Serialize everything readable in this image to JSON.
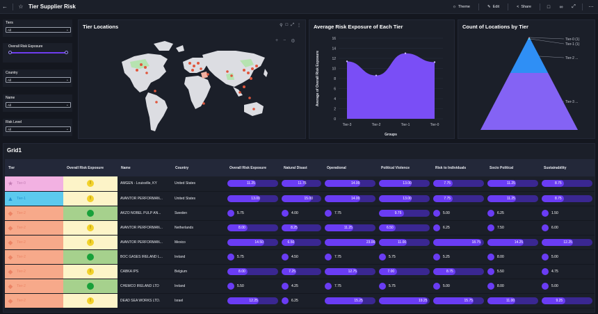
{
  "header": {
    "title": "Tier Supplier Risk",
    "buttons": {
      "theme": "Theme",
      "edit": "Edit",
      "share": "Share"
    }
  },
  "filters": [
    {
      "label": "Tiers",
      "value": "All",
      "kind": "select"
    },
    {
      "label": "Overall Risk Exposure",
      "kind": "range"
    },
    {
      "label": "Country",
      "value": "All",
      "kind": "select"
    },
    {
      "label": "Name",
      "value": "All",
      "kind": "select"
    },
    {
      "label": "Risk Level",
      "value": "All",
      "kind": "select"
    }
  ],
  "map_panel": {
    "title": "Tier Locations"
  },
  "area_chart": {
    "title": "Average Risk Exposure of Each Tier",
    "chart_data": {
      "type": "area",
      "categories": [
        "Tier-3",
        "Tier-2",
        "Tier-1",
        "Tier-0"
      ],
      "values": [
        11.4,
        8.6,
        13.0,
        11.25
      ],
      "xlabel": "Groups",
      "ylabel": "Average of Overall Risk Exposure",
      "ylim": [
        0,
        16
      ],
      "yticks": [
        0,
        2,
        4,
        6,
        8,
        10,
        12,
        14,
        16
      ],
      "grid": true,
      "color": "#7a4ef6"
    }
  },
  "pyramid_chart": {
    "title": "Count of Locations by Tier",
    "chart_data": {
      "type": "pyramid",
      "categories": [
        "Tier-0",
        "Tier-1",
        "Tier-2",
        "Tier-3"
      ],
      "values": [
        1,
        1,
        null,
        null
      ],
      "labels": [
        "Tier-0 (1)",
        "Tier-1 (1)",
        "Tier-2 ...",
        "Tier-3 ..."
      ],
      "colors": [
        "#e7a3d8",
        "#54c9f0",
        "#2f8ff5",
        "#8463f4"
      ]
    }
  },
  "grid": {
    "title": "Grid1",
    "columns": [
      "Tier",
      "Overall Risk Exposure",
      "Name",
      "Country",
      "Overall Risk Exposure",
      "Natural Disast",
      "Operational",
      "Political Violence",
      "Risk to Individuals",
      "Socio Political",
      "Sustainability"
    ],
    "rows": [
      {
        "tier": "Tier-0",
        "shape": "star",
        "tierColor": "#f2b1e2",
        "shapeColor": "#c27bb3",
        "status": "warn",
        "statusBg": "#fdf4c8",
        "name": "AMGEN - Louisville, KY",
        "country": "United States",
        "vals": [
          "11.25",
          "11.75",
          "14.00",
          "13.00",
          "7.75",
          "11.25",
          "8.75"
        ],
        "fills": [
          0.56,
          0.59,
          0.7,
          0.65,
          0.39,
          0.56,
          0.44
        ]
      },
      {
        "tier": "Tier-1",
        "shape": "triangle",
        "tierColor": "#5cc9ee",
        "shapeColor": "#1f8fd1",
        "status": "warn",
        "statusBg": "#fdf4c8",
        "name": "AVANTOR PERFORMAN...",
        "country": "United States",
        "vals": [
          "13.00",
          "15.00",
          "14.00",
          "13.00",
          "7.75",
          "11.25",
          "8.75"
        ],
        "fills": [
          0.65,
          0.75,
          0.7,
          0.65,
          0.39,
          0.56,
          0.44
        ]
      },
      {
        "tier": "Tier-2",
        "shape": "diamond",
        "tierColor": "#f7a98a",
        "shapeColor": "#ec8465",
        "status": "ok",
        "statusBg": "#a6d18d",
        "name": "AKZO NOBEL PULP AN...",
        "country": "Sweden",
        "vals": [
          "5.75",
          "4.00",
          "7.75",
          "9.75",
          "5.00",
          "6.25",
          "1.50"
        ],
        "fills": [
          0.0,
          0.0,
          0.0,
          0.49,
          0.0,
          0.0,
          0.0
        ]
      },
      {
        "tier": "Tier-2",
        "shape": "diamond",
        "tierColor": "#f7a98a",
        "shapeColor": "#ec8465",
        "status": "warn",
        "statusBg": "#fdf4c8",
        "name": "AVANTOR PERFORMAN...",
        "country": "Netherlands",
        "vals": [
          "8.00",
          "8.25",
          "11.25",
          "6.50",
          "6.25",
          "7.50",
          "6.00"
        ],
        "fills": [
          0.4,
          0.41,
          0.56,
          0.33,
          0.0,
          0.0,
          0.0
        ]
      },
      {
        "tier": "Tier-2",
        "shape": "diamond",
        "tierColor": "#f7a98a",
        "shapeColor": "#ec8465",
        "status": "warn",
        "statusBg": "#fdf4c8",
        "name": "AVANTOR PERFORMAN...",
        "country": "Mexico",
        "vals": [
          "14.50",
          "6.50",
          "23.00",
          "11.00",
          "18.75",
          "14.25",
          "12.25"
        ],
        "fills": [
          0.72,
          0.33,
          1.0,
          0.55,
          0.94,
          0.71,
          0.61
        ]
      },
      {
        "tier": "Tier-2",
        "shape": "diamond",
        "tierColor": "#f7a98a",
        "shapeColor": "#ec8465",
        "status": "ok",
        "statusBg": "#a6d18d",
        "name": "BOC GASES IRELAND L...",
        "country": "Ireland",
        "vals": [
          "5.75",
          "4.50",
          "7.75",
          "5.75",
          "5.25",
          "8.00",
          "5.00"
        ],
        "fills": [
          0.0,
          0.0,
          0.0,
          0.0,
          0.0,
          0.0,
          0.0
        ]
      },
      {
        "tier": "Tier-2",
        "shape": "diamond",
        "tierColor": "#f7a98a",
        "shapeColor": "#ec8465",
        "status": "warn",
        "statusBg": "#fdf4c8",
        "name": "CABKA IPS",
        "country": "Belgium",
        "vals": [
          "8.00",
          "7.25",
          "12.75",
          "7.00",
          "8.75",
          "5.50",
          "4.75"
        ],
        "fills": [
          0.4,
          0.36,
          0.64,
          0.35,
          0.44,
          0.0,
          0.0
        ]
      },
      {
        "tier": "Tier-2",
        "shape": "diamond",
        "tierColor": "#f7a98a",
        "shapeColor": "#ec8465",
        "status": "ok",
        "statusBg": "#a6d18d",
        "name": "CHEMCO IRELAND LTD",
        "country": "Ireland",
        "vals": [
          "5.50",
          "4.25",
          "7.75",
          "5.75",
          "5.00",
          "8.00",
          "5.00"
        ],
        "fills": [
          0.0,
          0.0,
          0.0,
          0.0,
          0.0,
          0.0,
          0.0
        ]
      },
      {
        "tier": "Tier-2",
        "shape": "diamond",
        "tierColor": "#f7a98a",
        "shapeColor": "#ec8465",
        "status": "warn",
        "statusBg": "#fdf4c8",
        "name": "DEAD SEA WORKS LTD.",
        "country": "Israel",
        "vals": [
          "12.25",
          "6.25",
          "15.25",
          "19.25",
          "15.75",
          "11.00",
          "9.25"
        ],
        "fills": [
          0.61,
          0.0,
          0.76,
          0.96,
          0.79,
          0.55,
          0.46
        ]
      }
    ]
  }
}
